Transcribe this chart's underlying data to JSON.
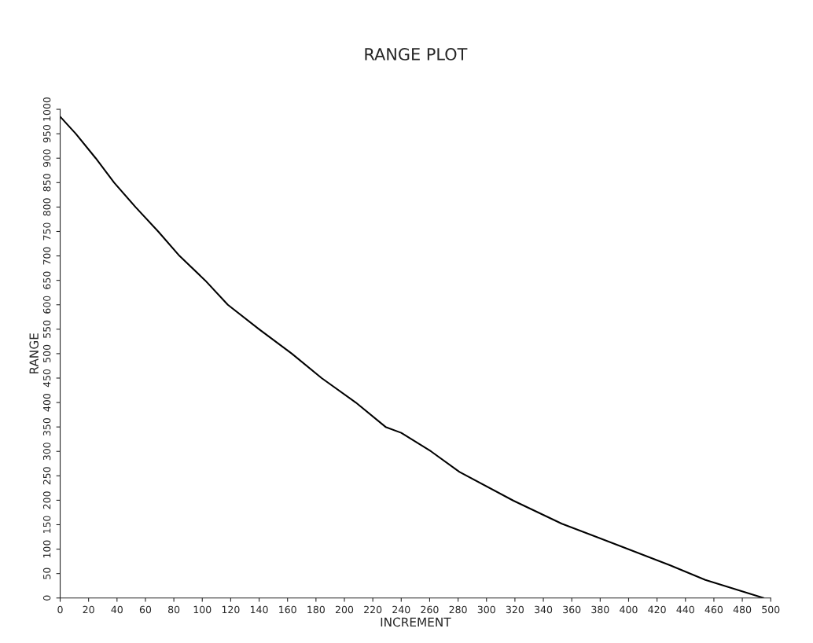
{
  "chart_data": {
    "type": "line",
    "title": "RANGE PLOT",
    "xlabel": "INCREMENT",
    "ylabel": "RANGE",
    "x": [
      0,
      11,
      25,
      38,
      53,
      69,
      84,
      102,
      118,
      140,
      163,
      184,
      208,
      229,
      240,
      261,
      281,
      319,
      353,
      396,
      429,
      454,
      495
    ],
    "series": [
      {
        "color": "#000000",
        "values": [
          985,
          950,
          900,
          850,
          800,
          750,
          700,
          650,
          600,
          550,
          500,
          450,
          400,
          350,
          338,
          300,
          258,
          199,
          152,
          104,
          67,
          37,
          0
        ]
      }
    ],
    "xlim": [
      0,
      500
    ],
    "xticks": [
      0,
      20,
      40,
      60,
      80,
      100,
      120,
      140,
      160,
      180,
      200,
      220,
      240,
      260,
      280,
      300,
      320,
      340,
      360,
      380,
      400,
      420,
      440,
      460,
      480,
      500
    ],
    "ylim": [
      0,
      1000
    ],
    "yticks": [
      0,
      50,
      100,
      150,
      200,
      250,
      300,
      350,
      400,
      450,
      500,
      550,
      600,
      650,
      700,
      750,
      800,
      850,
      900,
      950,
      1000
    ],
    "grid": false,
    "legend": false,
    "marker": "none",
    "line_style": "solid"
  }
}
